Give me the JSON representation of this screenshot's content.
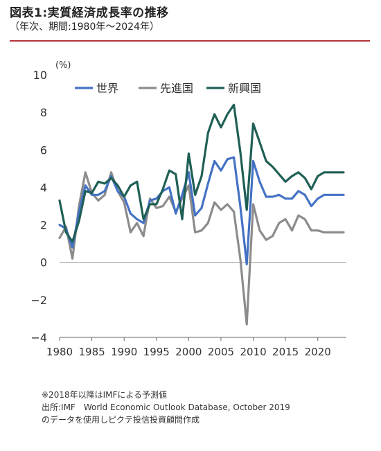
{
  "header": {
    "title": "図表1:実質経済成長率の推移",
    "subtitle": "（年次、期間:1980年～2024年）",
    "rule_color": "#b5333a"
  },
  "notes": [
    "※2018年以降はIMFによる予測値",
    "出所:IMF　World Economic Outlook Database, October 2019",
    "のデータを使用しピクテ投信投資顧問作成"
  ],
  "chart_data": {
    "type": "line",
    "unit_label": "(%)",
    "ylim": [
      -4,
      10
    ],
    "yticks": [
      -4,
      -2,
      0,
      2,
      4,
      6,
      8,
      10
    ],
    "xlim": [
      1980,
      2024
    ],
    "xticks": [
      1980,
      1985,
      1990,
      1995,
      2000,
      2005,
      2010,
      2015,
      2020
    ],
    "grid": false,
    "legend_position": "top",
    "x": [
      1980,
      1981,
      1982,
      1983,
      1984,
      1985,
      1986,
      1987,
      1988,
      1989,
      1990,
      1991,
      1992,
      1993,
      1994,
      1995,
      1996,
      1997,
      1998,
      1999,
      2000,
      2001,
      2002,
      2003,
      2004,
      2005,
      2006,
      2007,
      2008,
      2009,
      2010,
      2011,
      2012,
      2013,
      2014,
      2015,
      2016,
      2017,
      2018,
      2019,
      2020,
      2021,
      2022,
      2023,
      2024
    ],
    "series": [
      {
        "name": "世界",
        "color": "#4472c4",
        "values": [
          2.0,
          1.8,
          0.8,
          2.7,
          4.1,
          3.6,
          3.6,
          3.8,
          4.6,
          3.8,
          3.5,
          2.6,
          2.3,
          2.1,
          3.3,
          3.4,
          3.8,
          4.0,
          2.6,
          3.6,
          4.8,
          2.5,
          2.9,
          4.2,
          5.4,
          4.9,
          5.5,
          5.6,
          3.0,
          -0.1,
          5.4,
          4.3,
          3.5,
          3.5,
          3.6,
          3.4,
          3.4,
          3.8,
          3.6,
          3.0,
          3.4,
          3.6,
          3.6,
          3.6,
          3.6
        ]
      },
      {
        "name": "先進国",
        "color": "#8c8c8c",
        "values": [
          1.3,
          1.9,
          0.2,
          3.0,
          4.8,
          3.7,
          3.3,
          3.6,
          4.8,
          3.8,
          3.2,
          1.6,
          2.1,
          1.4,
          3.4,
          2.9,
          3.0,
          3.5,
          2.7,
          3.4,
          4.1,
          1.6,
          1.7,
          2.1,
          3.2,
          2.8,
          3.1,
          2.7,
          0.2,
          -3.3,
          3.1,
          1.7,
          1.2,
          1.4,
          2.1,
          2.3,
          1.7,
          2.5,
          2.3,
          1.7,
          1.7,
          1.6,
          1.6,
          1.6,
          1.6
        ]
      },
      {
        "name": "新興国",
        "color": "#1f5f55",
        "values": [
          3.3,
          1.6,
          1.1,
          2.2,
          3.8,
          3.7,
          4.3,
          4.2,
          4.5,
          4.1,
          3.5,
          4.1,
          4.3,
          2.3,
          3.1,
          3.1,
          3.9,
          4.9,
          4.7,
          2.3,
          5.8,
          3.6,
          4.6,
          6.9,
          7.9,
          7.2,
          7.9,
          8.4,
          5.9,
          2.8,
          7.4,
          6.4,
          5.4,
          5.1,
          4.7,
          4.3,
          4.6,
          4.8,
          4.5,
          3.9,
          4.6,
          4.8,
          4.8,
          4.8,
          4.8
        ]
      }
    ]
  }
}
